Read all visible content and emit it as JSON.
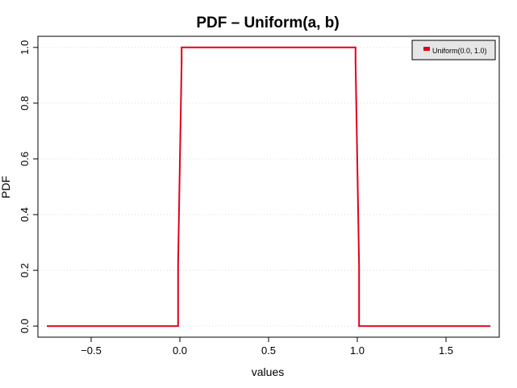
{
  "chart_data": {
    "type": "line",
    "title": "PDF – Uniform(a, b)",
    "xlabel": "values",
    "ylabel": "PDF",
    "xlim": [
      -0.8,
      1.8
    ],
    "ylim": [
      -0.04,
      1.04
    ],
    "x_ticks": [
      -0.5,
      0.0,
      0.5,
      1.0,
      1.5
    ],
    "x_tick_labels": [
      "−0.5",
      "0.0",
      "0.5",
      "1.0",
      "1.5"
    ],
    "y_ticks": [
      0.0,
      0.2,
      0.4,
      0.6,
      0.8,
      1.0
    ],
    "y_tick_labels": [
      "0.0",
      "0.2",
      "0.4",
      "0.6",
      "0.8",
      "1.0"
    ],
    "grid": true,
    "legend_position": "top-right",
    "series": [
      {
        "name": "Uniform(0.0, 1.0)",
        "color": "#e0001b",
        "x": [
          -0.75,
          -0.01,
          -0.01,
          0.01,
          0.01,
          0.99,
          0.99,
          1.01,
          1.01,
          1.75
        ],
        "y": [
          0,
          0,
          0.22,
          0.95,
          1,
          1,
          0.95,
          0.22,
          0,
          0
        ]
      }
    ]
  }
}
